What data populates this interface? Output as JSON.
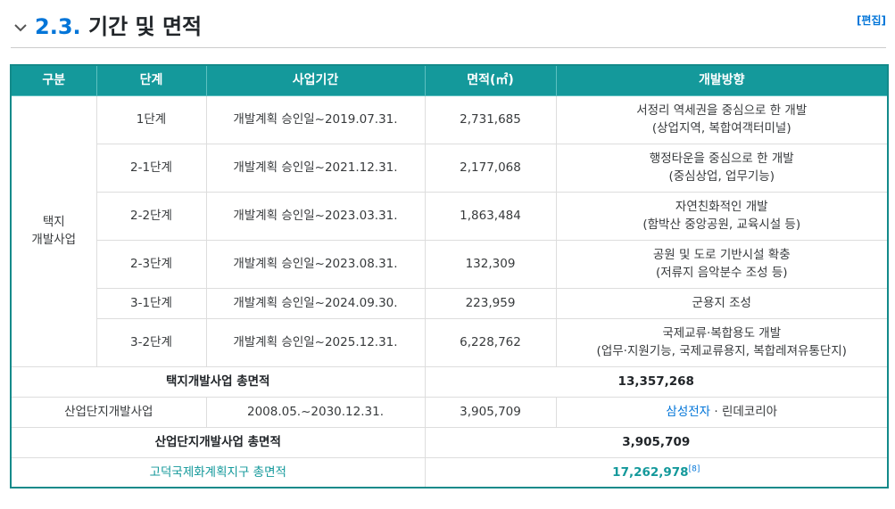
{
  "section": {
    "number": "2.3.",
    "title": "기간 및 면적",
    "edit_label": "[편집]"
  },
  "table": {
    "headers": [
      "구분",
      "단계",
      "사업기간",
      "면적(㎡)",
      "개발방향"
    ],
    "group_label_line1": "택지",
    "group_label_line2": "개발사업",
    "rows": [
      {
        "stage": "1단계",
        "period": "개발계획 승인일~2019.07.31.",
        "area": "2,731,685",
        "dir1": "서정리 역세권을 중심으로 한 개발",
        "dir2": "(상업지역, 복합여객터미널)"
      },
      {
        "stage": "2-1단계",
        "period": "개발계획 승인일~2021.12.31.",
        "area": "2,177,068",
        "dir1": "행정타운을 중심으로 한 개발",
        "dir2": "(중심상업, 업무기능)"
      },
      {
        "stage": "2-2단계",
        "period": "개발계획 승인일~2023.03.31.",
        "area": "1,863,484",
        "dir1": "자연친화적인 개발",
        "dir2": "(함박산 중앙공원, 교육시설 등)"
      },
      {
        "stage": "2-3단계",
        "period": "개발계획 승인일~2023.08.31.",
        "area": "132,309",
        "dir1": "공원 및 도로 기반시설 확충",
        "dir2": "(저류지 음악분수 조성 등)"
      },
      {
        "stage": "3-1단계",
        "period": "개발계획 승인일~2024.09.30.",
        "area": "223,959",
        "dir1": "군용지 조성",
        "dir2": ""
      },
      {
        "stage": "3-2단계",
        "period": "개발계획 승인일~2025.12.31.",
        "area": "6,228,762",
        "dir1": "국제교류·복합용도 개발",
        "dir2": "(업무·지원기능, 국제교류용지, 복합레져유통단지)"
      }
    ],
    "housing_total_label": "택지개발사업 총면적",
    "housing_total_value": "13,357,268",
    "industrial": {
      "label": "산업단지개발사업",
      "period": "2008.05.~2030.12.31.",
      "area": "3,905,709",
      "company_link": "삼성전자",
      "company_sep": " · ",
      "company_other": "린데코리아"
    },
    "industrial_total_label": "산업단지개발사업 총면적",
    "industrial_total_value": "3,905,709",
    "grand_total_label": "고덕국제화계획지구 총면적",
    "grand_total_value": "17,262,978",
    "footnote": "[8]"
  }
}
